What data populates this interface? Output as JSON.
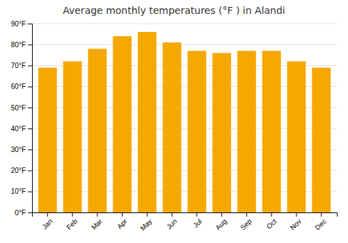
{
  "chart_data": {
    "type": "bar",
    "title": "Average monthly temperatures (°F ) in Alandi",
    "categories": [
      "Jan",
      "Feb",
      "Mar",
      "Apr",
      "May",
      "Jun",
      "Jul",
      "Aug",
      "Sep",
      "Oct",
      "Nov",
      "Dec"
    ],
    "values": [
      69,
      72,
      78,
      84,
      86,
      81,
      77,
      76,
      77,
      77,
      72,
      69
    ],
    "color": "#F5A800",
    "ylim": [
      0,
      90
    ],
    "yticks": [
      {
        "value": 0,
        "label": "0°F"
      },
      {
        "value": 10,
        "label": "10°F"
      },
      {
        "value": 20,
        "label": "20°F"
      },
      {
        "value": 30,
        "label": "30°F"
      },
      {
        "value": 40,
        "label": "40°F"
      },
      {
        "value": 50,
        "label": "50°F"
      },
      {
        "value": 60,
        "label": "60°F"
      },
      {
        "value": 70,
        "label": "70°F"
      },
      {
        "value": 80,
        "label": "80°F"
      },
      {
        "value": 90,
        "label": "90°F"
      }
    ],
    "grid": true
  }
}
